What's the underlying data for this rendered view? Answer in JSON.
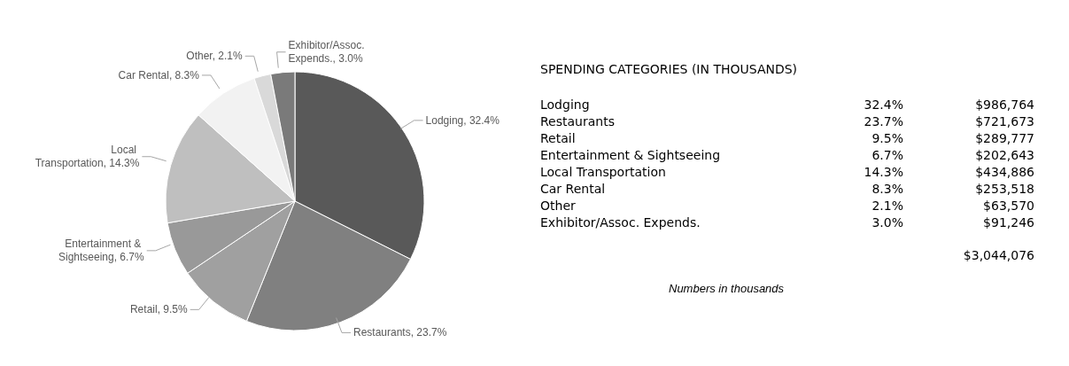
{
  "chart_data": [
    {
      "type": "pie",
      "categories": [
        "Lodging",
        "Restaurants",
        "Retail",
        "Entertainment & Sightseeing",
        "Local Transportation",
        "Car Rental",
        "Other",
        "Exhibitor/Assoc. Expends."
      ],
      "values": [
        32.4,
        23.7,
        9.5,
        6.7,
        14.3,
        8.3,
        2.1,
        3.0
      ],
      "value_labels": [
        "32.4%",
        "23.7%",
        "9.5%",
        "6.7%",
        "14.3%",
        "8.3%",
        "2.1%",
        "3.0%"
      ],
      "colors": [
        "#595959",
        "#808080",
        "#a0a0a0",
        "#999999",
        "#bfbfbf",
        "#f2f2f2",
        "#d9d9d9",
        "#7a7a7a"
      ],
      "legend": false
    },
    {
      "type": "other",
      "title": "SPENDING CATEGORIES (IN THOUSANDS)",
      "categories": [
        "Lodging",
        "Restaurants",
        "Retail",
        "Entertainment & Sightseeing",
        "Local Transportation",
        "Car Rental",
        "Other",
        "Exhibitor/Assoc. Expends."
      ],
      "annotations": [
        "32.4%",
        "23.7%",
        "9.5%",
        "6.7%",
        "14.3%",
        "8.3%",
        "2.1%",
        "3.0%",
        "$986,764",
        "$721,673",
        "$289,777",
        "$202,643",
        "$434,886",
        "$253,518",
        "$63,570",
        "$91,246",
        "$3,044,076",
        "Numbers in thousands"
      ]
    }
  ]
}
